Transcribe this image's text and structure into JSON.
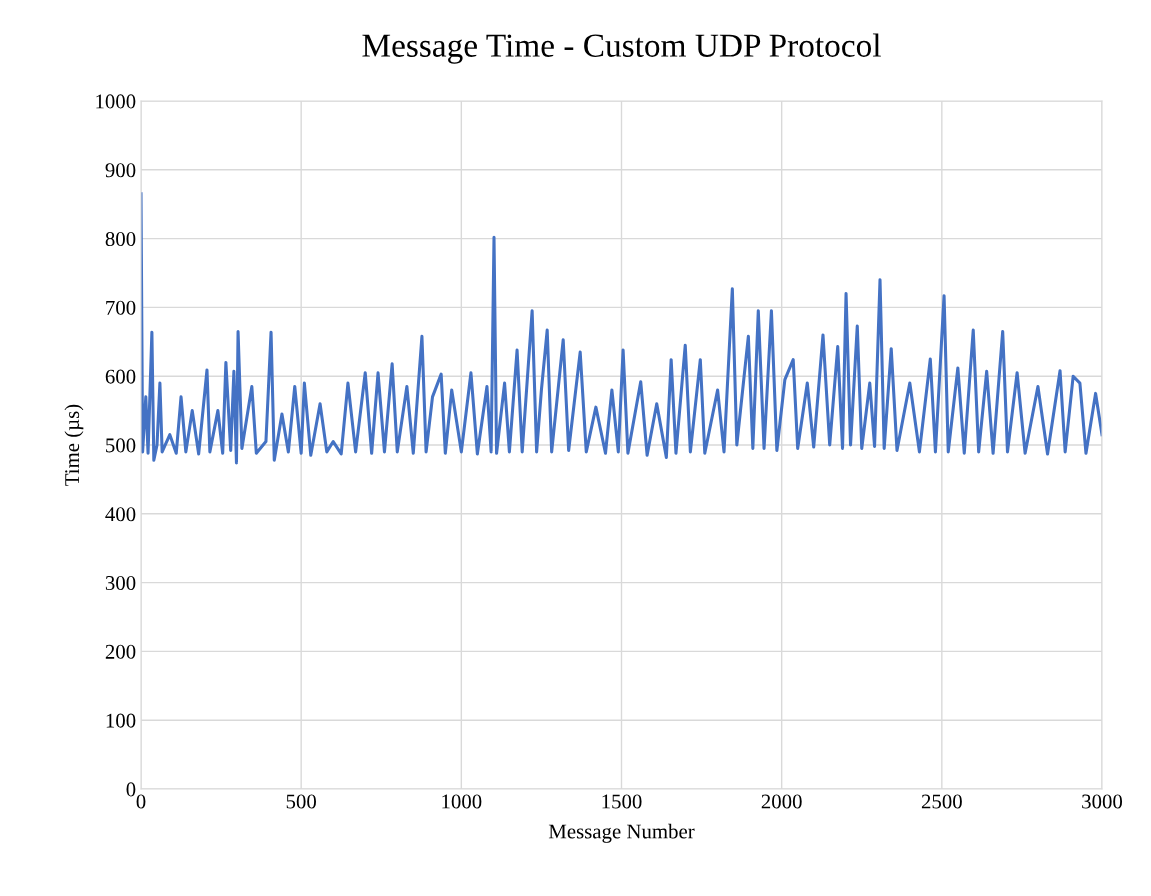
{
  "chart_data": {
    "type": "line",
    "title": "Message Time - Custom UDP Protocol",
    "xlabel": "Message Number",
    "ylabel": "Time (µs)",
    "xlim": [
      0,
      3000
    ],
    "xticks": [
      0,
      500,
      1000,
      1500,
      2000,
      2500,
      3000
    ],
    "ylim": [
      0,
      1000
    ],
    "yticks": [
      0,
      100,
      200,
      300,
      400,
      500,
      600,
      700,
      800,
      900,
      1000
    ],
    "grid": true,
    "marker": "none",
    "line_style": "solid",
    "series": [
      {
        "color": "#4472c4",
        "x": [
          0,
          5,
          15,
          22,
          34,
          40,
          50,
          59,
          66,
          90,
          110,
          125,
          140,
          160,
          180,
          206,
          215,
          240,
          255,
          265,
          280,
          290,
          298,
          303,
          315,
          346,
          360,
          390,
          406,
          416,
          440,
          460,
          480,
          500,
          510,
          530,
          559,
          580,
          600,
          625,
          646,
          670,
          700,
          720,
          740,
          760,
          784,
          800,
          830,
          850,
          877,
          890,
          910,
          937,
          950,
          970,
          1000,
          1030,
          1050,
          1080,
          1093,
          1102,
          1110,
          1135,
          1150,
          1174,
          1190,
          1221,
          1235,
          1250,
          1268,
          1282,
          1318,
          1335,
          1371,
          1390,
          1420,
          1450,
          1470,
          1490,
          1505,
          1520,
          1560,
          1580,
          1610,
          1640,
          1655,
          1670,
          1699,
          1715,
          1746,
          1760,
          1800,
          1820,
          1846,
          1860,
          1896,
          1910,
          1927,
          1945,
          1968,
          1985,
          2010,
          2036,
          2050,
          2080,
          2100,
          2129,
          2150,
          2175,
          2190,
          2201,
          2215,
          2236,
          2250,
          2275,
          2290,
          2307,
          2320,
          2342,
          2360,
          2400,
          2430,
          2464,
          2480,
          2507,
          2520,
          2550,
          2570,
          2598,
          2615,
          2640,
          2660,
          2690,
          2705,
          2735,
          2760,
          2800,
          2830,
          2869,
          2885,
          2910,
          2931,
          2950,
          2980,
          3000
        ],
        "values": [
          865,
          490,
          570,
          488,
          664,
          478,
          500,
          590,
          490,
          515,
          488,
          570,
          490,
          550,
          487,
          609,
          490,
          550,
          488,
          620,
          492,
          607,
          474,
          665,
          495,
          585,
          488,
          505,
          664,
          478,
          545,
          490,
          585,
          488,
          590,
          485,
          560,
          490,
          505,
          487,
          590,
          490,
          605,
          488,
          605,
          490,
          618,
          490,
          585,
          488,
          658,
          490,
          570,
          603,
          488,
          580,
          490,
          605,
          487,
          585,
          490,
          802,
          488,
          590,
          490,
          638,
          490,
          695,
          490,
          580,
          667,
          490,
          653,
          492,
          635,
          490,
          555,
          488,
          580,
          490,
          638,
          488,
          592,
          485,
          560,
          482,
          624,
          488,
          645,
          490,
          624,
          488,
          580,
          490,
          727,
          500,
          658,
          495,
          695,
          495,
          695,
          492,
          595,
          624,
          495,
          590,
          497,
          660,
          500,
          643,
          495,
          720,
          500,
          673,
          495,
          590,
          498,
          740,
          495,
          640,
          492,
          590,
          490,
          625,
          490,
          717,
          490,
          612,
          488,
          667,
          490,
          607,
          488,
          665,
          490,
          605,
          488,
          585,
          487,
          608,
          490,
          600,
          590,
          488,
          575,
          515
        ]
      }
    ]
  }
}
